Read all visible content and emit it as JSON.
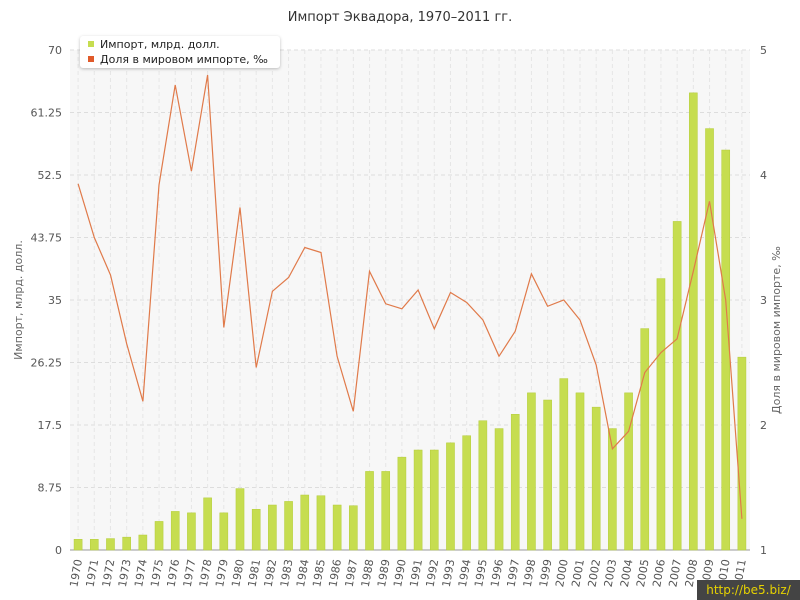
{
  "chart_data": {
    "type": "bar",
    "title": "Импорт Эквадора, 1970–2011 гг.",
    "categories": [
      "1970",
      "1971",
      "1972",
      "1973",
      "1974",
      "1975",
      "1976",
      "1977",
      "1978",
      "1979",
      "1980",
      "1981",
      "1982",
      "1983",
      "1984",
      "1985",
      "1986",
      "1987",
      "1988",
      "1989",
      "1990",
      "1991",
      "1992",
      "1993",
      "1994",
      "1995",
      "1996",
      "1997",
      "1998",
      "1999",
      "2000",
      "2001",
      "2002",
      "2003",
      "2004",
      "2005",
      "2006",
      "2007",
      "2008",
      "2009",
      "2010",
      "2011"
    ],
    "y_left": {
      "label": "Импорт, млрд. долл.",
      "ticks": [
        "0",
        "8.75",
        "17.5",
        "26.25",
        "35",
        "43.75",
        "52.5",
        "61.25",
        "70"
      ],
      "range": [
        0,
        70
      ]
    },
    "y_right": {
      "label": "Доля в мировом импорте, ‰",
      "ticks": [
        "1",
        "2",
        "3",
        "4",
        "5"
      ],
      "range": [
        1,
        5
      ]
    },
    "series": [
      {
        "name": "Импорт, млрд. долл.",
        "type": "bar",
        "axis": "left",
        "color": "#c6dd50",
        "values": [
          1.5,
          1.5,
          1.6,
          1.8,
          2.1,
          4.0,
          5.4,
          5.2,
          7.3,
          5.2,
          8.6,
          5.7,
          6.3,
          6.8,
          7.7,
          7.6,
          6.3,
          6.2,
          11.0,
          11.0,
          13.0,
          14.0,
          14.0,
          15.0,
          16.0,
          18.1,
          17.0,
          19.0,
          22.0,
          21.0,
          24.0,
          22.0,
          20.0,
          17.0,
          22.0,
          31.0,
          38.0,
          46.0,
          64.0,
          59.0,
          56.0,
          27.0
        ]
      },
      {
        "name": "Доля в мировом импорте, ‰",
        "type": "line",
        "axis": "right",
        "color": "#e07a4a",
        "values": [
          3.93,
          3.5,
          3.2,
          2.65,
          2.19,
          3.92,
          4.72,
          4.03,
          4.8,
          2.78,
          3.74,
          2.46,
          3.07,
          3.18,
          3.42,
          3.38,
          2.55,
          2.11,
          3.23,
          2.97,
          2.93,
          3.08,
          2.77,
          3.06,
          2.98,
          2.84,
          2.55,
          2.75,
          3.21,
          2.95,
          3.0,
          2.84,
          2.48,
          1.81,
          1.95,
          2.42,
          2.58,
          2.69,
          3.23,
          3.79,
          3.0,
          1.25
        ]
      }
    ],
    "grid": true,
    "legend_position": "top-left"
  },
  "watermark": "http://be5.biz/"
}
